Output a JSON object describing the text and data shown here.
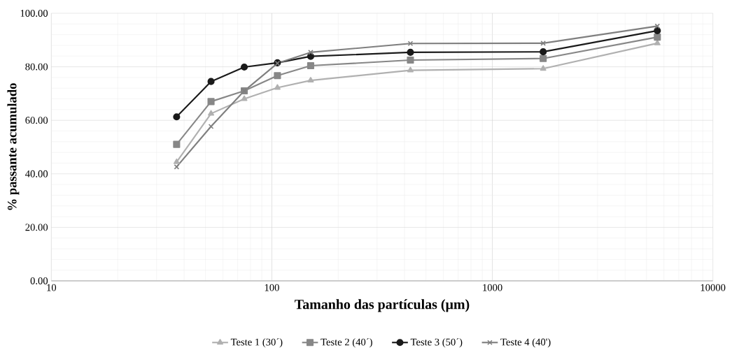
{
  "chart_data": {
    "type": "line",
    "xlabel": "Tamanho das partículas (µm)",
    "ylabel": "% passante acumulado",
    "log": "x",
    "grid": true,
    "legend": "bottom",
    "line_style": "solid",
    "x": [
      37,
      53,
      75,
      106,
      150,
      425,
      1700,
      5600
    ],
    "xlim": [
      10,
      10000
    ],
    "xticks": [
      10,
      100,
      1000,
      10000
    ],
    "ylim": [
      0,
      100
    ],
    "yticks": [
      {
        "value": 0,
        "label": "0.00"
      },
      {
        "value": 20,
        "label": "20.00"
      },
      {
        "value": 40,
        "label": "40.00"
      },
      {
        "value": 60,
        "label": "60.00"
      },
      {
        "value": 80,
        "label": "80.00"
      },
      {
        "value": 100,
        "label": "100.00"
      }
    ],
    "series": [
      {
        "name": "Teste 1 (30´)",
        "color": "#b0b0b0",
        "marker": "triangle",
        "values": [
          44.4,
          62.5,
          68.0,
          72.2,
          74.9,
          78.7,
          79.3,
          88.8
        ]
      },
      {
        "name": "Teste 2 (40´)",
        "color": "#878787",
        "marker": "square",
        "values": [
          51.0,
          67.0,
          71.0,
          76.7,
          80.4,
          82.5,
          83.1,
          91.1
        ]
      },
      {
        "name": "Teste 3 (50´)",
        "color": "#1a1a1a",
        "marker": "circle",
        "values": [
          61.3,
          74.5,
          79.9,
          81.5,
          83.9,
          85.4,
          85.6,
          93.5
        ]
      },
      {
        "name": "Teste 4 (40')",
        "color": "#7f7f7f",
        "marker": "cross",
        "values": [
          42.6,
          57.7,
          71.0,
          81.3,
          85.4,
          88.7,
          88.8,
          95.2
        ]
      }
    ]
  }
}
